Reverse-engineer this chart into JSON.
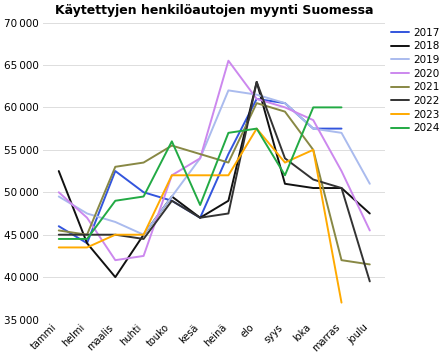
{
  "title": "Käytettyjen henkilöautojen myynti Suomessa",
  "months": [
    "tammi",
    "helmi",
    "maalis",
    "huhti",
    "touko",
    "kesä",
    "heinä",
    "elo",
    "syys",
    "loka",
    "marras",
    "joulu"
  ],
  "series": {
    "2017": [
      46000,
      44000,
      52500,
      50000,
      49000,
      47000,
      54500,
      61000,
      60500,
      57500,
      57500,
      null
    ],
    "2018": [
      52500,
      44000,
      40000,
      45000,
      49500,
      47000,
      49000,
      63000,
      51000,
      50500,
      50500,
      47500
    ],
    "2019": [
      49500,
      47500,
      46500,
      45000,
      49500,
      54000,
      62000,
      61500,
      60500,
      57500,
      57000,
      51000
    ],
    "2020": [
      50000,
      47000,
      42000,
      42500,
      52000,
      54000,
      65500,
      61000,
      60000,
      58500,
      52500,
      45500
    ],
    "2021": [
      45500,
      45000,
      53000,
      53500,
      55500,
      54500,
      53500,
      60500,
      59500,
      55000,
      42000,
      41500
    ],
    "2022": [
      45000,
      45000,
      45000,
      44500,
      49000,
      47000,
      47500,
      63000,
      54000,
      51500,
      50500,
      39500
    ],
    "2023": [
      43500,
      43500,
      45000,
      45000,
      52000,
      52000,
      52000,
      57500,
      53500,
      55000,
      37000,
      null
    ],
    "2024": [
      44500,
      44500,
      49000,
      49500,
      56000,
      48500,
      57000,
      57500,
      52000,
      60000,
      60000,
      null
    ]
  },
  "colors": {
    "2017": "#3355dd",
    "2018": "#111111",
    "2019": "#aabbee",
    "2020": "#cc88ee",
    "2021": "#888844",
    "2022": "#333333",
    "2023": "#ffaa00",
    "2024": "#22aa44"
  },
  "ylim": [
    35000,
    70000
  ],
  "yticks": [
    35000,
    40000,
    45000,
    50000,
    55000,
    60000,
    65000,
    70000
  ],
  "background_color": "#ffffff"
}
